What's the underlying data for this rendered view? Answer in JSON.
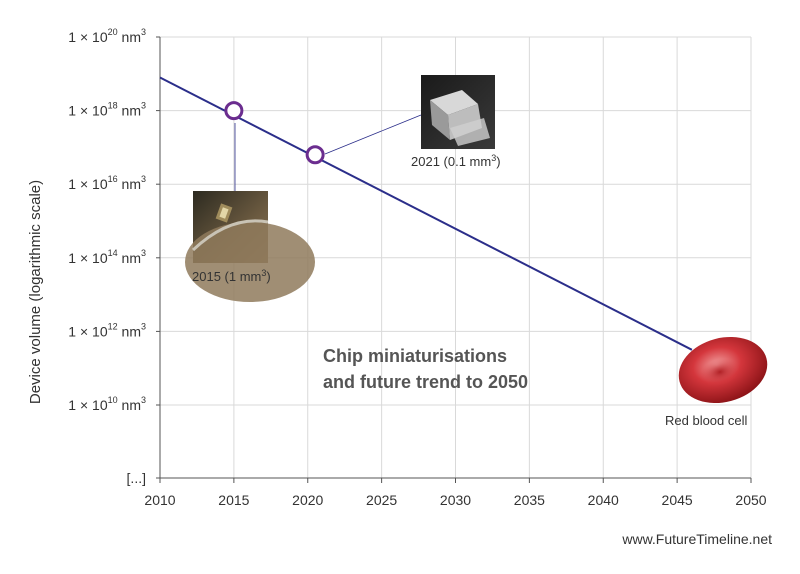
{
  "chart_data": {
    "type": "line",
    "title": "Chip miniaturisations",
    "subtitle": "and future trend to 2050",
    "ylabel": "Device volume (logarithmic scale)",
    "xlabel": "",
    "y_scale": "log",
    "xlim": [
      2010,
      2050
    ],
    "x_ticks": [
      "2010",
      "2015",
      "2020",
      "2025",
      "2030",
      "2035",
      "2040",
      "2045",
      "2050"
    ],
    "y_ticks": [
      {
        "base": "1 × 10",
        "exp": "20",
        "unit": " nm",
        "unit_exp": "3",
        "log10": 20
      },
      {
        "base": "1 × 10",
        "exp": "18",
        "unit": " nm",
        "unit_exp": "3",
        "log10": 18
      },
      {
        "base": "1 × 10",
        "exp": "16",
        "unit": " nm",
        "unit_exp": "3",
        "log10": 16
      },
      {
        "base": "1 × 10",
        "exp": "14",
        "unit": " nm",
        "unit_exp": "3",
        "log10": 14
      },
      {
        "base": "1 × 10",
        "exp": "12",
        "unit": "  nm",
        "unit_exp": "3",
        "log10": 12
      },
      {
        "base": "1 × 10",
        "exp": "10",
        "unit": "  nm",
        "unit_exp": "3",
        "log10": 10
      }
    ],
    "y_tick_extra": "[...]",
    "grid": true,
    "series": [
      {
        "color": "#2b2e8a",
        "points": [
          {
            "x": 2010,
            "log10_y": 18.9
          },
          {
            "x": 2046,
            "log10_y": 11.5
          }
        ]
      }
    ],
    "markers": [
      {
        "x": 2015,
        "log10_y": 18.0,
        "label": "2015 (1 mm",
        "label_exp": "3",
        "label_end": ")"
      },
      {
        "x": 2020.5,
        "log10_y": 16.8,
        "label": "2021 (0.1 mm",
        "label_exp": "3",
        "label_end": ")"
      }
    ],
    "annotations": {
      "end_label": "Red blood cell"
    },
    "colors": {
      "line": "#2b2e8a",
      "marker_edge": "#6b2d8f",
      "grid": "#d9d9d9",
      "axis": "#555555"
    }
  },
  "footer": {
    "credit": "www.FutureTimeline.net"
  }
}
